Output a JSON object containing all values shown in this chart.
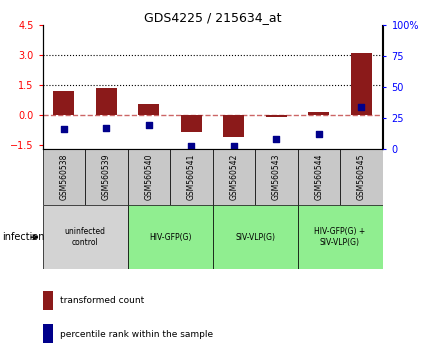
{
  "title": "GDS4225 / 215634_at",
  "samples": [
    "GSM560538",
    "GSM560539",
    "GSM560540",
    "GSM560541",
    "GSM560542",
    "GSM560543",
    "GSM560544",
    "GSM560545"
  ],
  "transformed_count": [
    1.2,
    1.35,
    0.55,
    -0.85,
    -1.1,
    -0.12,
    0.12,
    3.1
  ],
  "percentile_rank": [
    16,
    17,
    19,
    2,
    2,
    8,
    12,
    34
  ],
  "ylim_left": [
    -1.7,
    4.5
  ],
  "ylim_right": [
    0,
    100
  ],
  "yticks_left": [
    -1.5,
    0,
    1.5,
    3,
    4.5
  ],
  "yticks_right": [
    0,
    25,
    50,
    75,
    100
  ],
  "bar_color": "#8B1A1A",
  "dot_color": "#00008B",
  "zero_line_color": "#CC6666",
  "dotted_line_color": "#000000",
  "bar_width": 0.5,
  "groups": [
    {
      "label": "uninfected\ncontrol",
      "start": 0,
      "end": 2,
      "color": "#d3d3d3"
    },
    {
      "label": "HIV-GFP(G)",
      "start": 2,
      "end": 4,
      "color": "#90EE90"
    },
    {
      "label": "SIV-VLP(G)",
      "start": 4,
      "end": 6,
      "color": "#90EE90"
    },
    {
      "label": "HIV-GFP(G) +\nSIV-VLP(G)",
      "start": 6,
      "end": 8,
      "color": "#90EE90"
    }
  ],
  "sample_bg_color": "#c8c8c8",
  "infection_label": "infection",
  "legend_items": [
    {
      "label": "transformed count",
      "color": "#8B1A1A"
    },
    {
      "label": "percentile rank within the sample",
      "color": "#00008B"
    }
  ]
}
